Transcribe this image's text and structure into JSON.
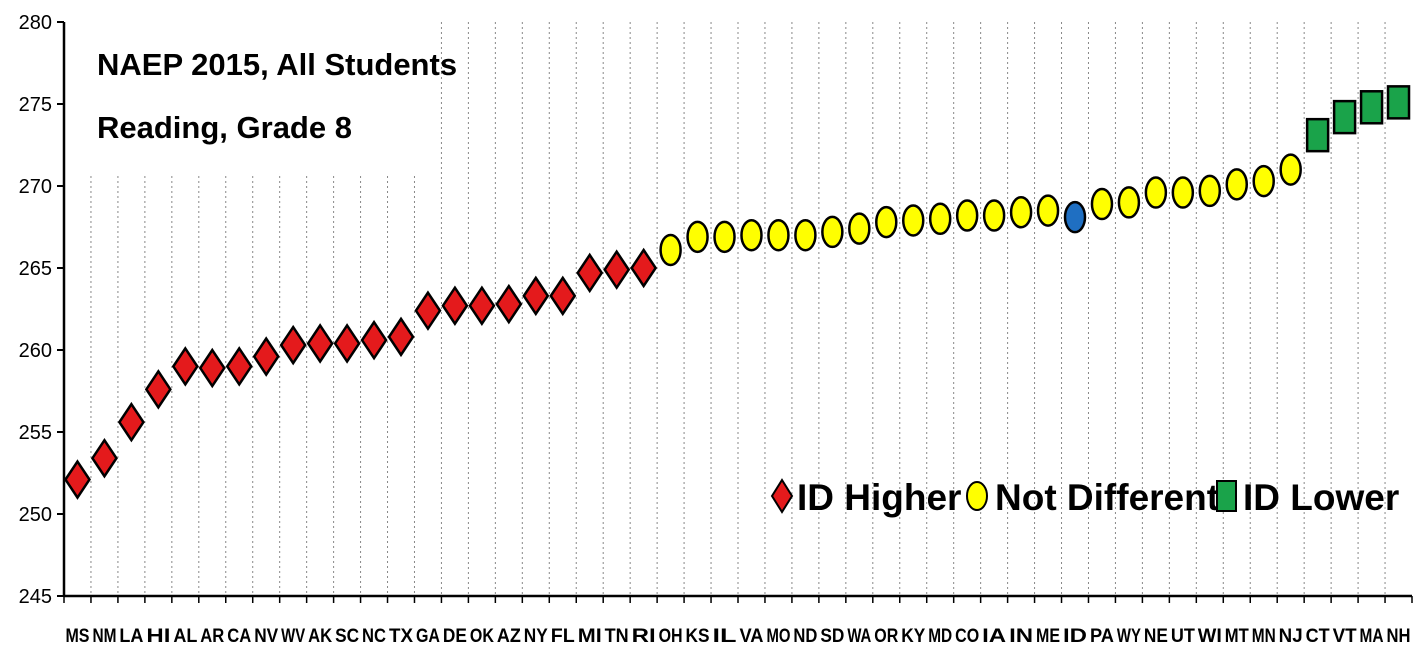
{
  "chart_data": {
    "type": "scatter",
    "title": "NAEP 2015, All Students",
    "subtitle": "Reading, Grade 8",
    "ylim": [
      245,
      280
    ],
    "yticks": [
      245,
      250,
      255,
      260,
      265,
      270,
      275,
      280
    ],
    "grid": "vertical dashed",
    "legend_placement": "bottom-right",
    "categories": [
      "MS",
      "NM",
      "LA",
      "HI",
      "AL",
      "AR",
      "CA",
      "NV",
      "WV",
      "AK",
      "SC",
      "NC",
      "TX",
      "GA",
      "DE",
      "OK",
      "AZ",
      "NY",
      "FL",
      "MI",
      "TN",
      "RI",
      "OH",
      "KS",
      "IL",
      "VA",
      "MO",
      "ND",
      "SD",
      "WA",
      "OR",
      "KY",
      "MD",
      "CO",
      "IA",
      "IN",
      "ME",
      "ID",
      "PA",
      "WY",
      "NE",
      "UT",
      "WI",
      "MT",
      "MN",
      "NJ",
      "CT",
      "VT",
      "MA",
      "NH"
    ],
    "values": [
      252.1,
      253.4,
      255.6,
      257.6,
      259.0,
      258.9,
      259.0,
      259.6,
      260.3,
      260.4,
      260.4,
      260.6,
      260.8,
      262.4,
      262.7,
      262.7,
      262.8,
      263.3,
      263.3,
      264.7,
      264.9,
      265.0,
      266.1,
      266.9,
      266.9,
      267.0,
      267.0,
      267.0,
      267.2,
      267.4,
      267.8,
      267.9,
      268.0,
      268.2,
      268.2,
      268.4,
      268.5,
      268.1,
      268.9,
      269.0,
      269.6,
      269.6,
      269.7,
      270.1,
      270.3,
      271.0,
      273.1,
      274.2,
      274.8,
      275.1
    ],
    "groups": [
      "higher",
      "higher",
      "higher",
      "higher",
      "higher",
      "higher",
      "higher",
      "higher",
      "higher",
      "higher",
      "higher",
      "higher",
      "higher",
      "higher",
      "higher",
      "higher",
      "higher",
      "higher",
      "higher",
      "higher",
      "higher",
      "higher",
      "same",
      "same",
      "same",
      "same",
      "same",
      "same",
      "same",
      "same",
      "same",
      "same",
      "same",
      "same",
      "same",
      "same",
      "same",
      "id",
      "same",
      "same",
      "same",
      "same",
      "same",
      "same",
      "same",
      "same",
      "lower",
      "lower",
      "lower",
      "lower"
    ],
    "legend": [
      {
        "key": "higher",
        "label": "ID Higher",
        "marker": "diamond"
      },
      {
        "key": "same",
        "label": "Not Different",
        "marker": "circle"
      },
      {
        "key": "lower",
        "label": "ID Lower",
        "marker": "square"
      }
    ],
    "colors": {
      "higher": "#e41a1c",
      "same": "#ffff00",
      "lower": "#1aa34a",
      "id": "#1f6fc2",
      "outline": "#000000",
      "grid": "#888888"
    }
  }
}
